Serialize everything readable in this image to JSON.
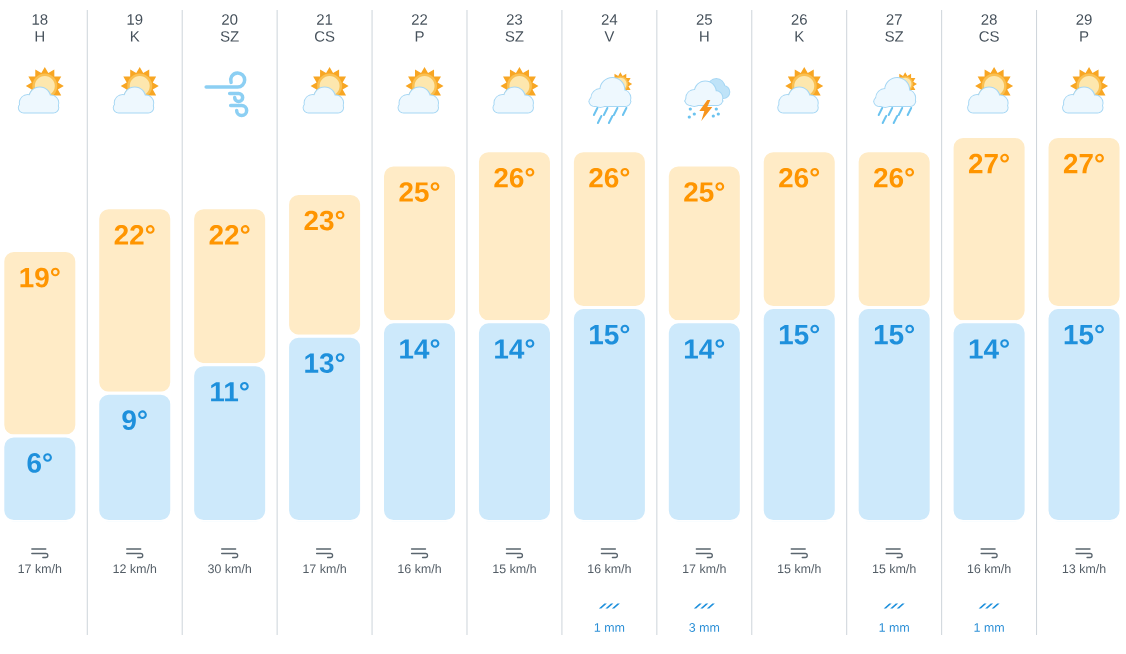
{
  "chart_data": {
    "type": "bar",
    "stacked": true,
    "categories": [
      "18 H",
      "19 K",
      "20 SZ",
      "21 CS",
      "22 P",
      "23 SZ",
      "24 V",
      "25 H",
      "26 K",
      "27 SZ",
      "28 CS",
      "29 P"
    ],
    "series": [
      {
        "color": "#cde9fb",
        "values": [
          6,
          9,
          11,
          13,
          14,
          14,
          15,
          14,
          15,
          15,
          14,
          15
        ],
        "value_labels": [
          "6°",
          "9°",
          "11°",
          "13°",
          "14°",
          "14°",
          "15°",
          "14°",
          "15°",
          "15°",
          "14°",
          "15°"
        ]
      },
      {
        "color": "#ffebc6",
        "values": [
          13,
          13,
          11,
          10,
          11,
          12,
          11,
          11,
          11,
          11,
          13,
          12
        ]
      }
    ],
    "totals": [
      "19°",
      "22°",
      "22°",
      "23°",
      "25°",
      "26°",
      "26°",
      "25°",
      "26°",
      "26°",
      "27°",
      "27°"
    ],
    "grid": "x",
    "tick_labels": "x",
    "annotations": [
      "17 km/h",
      "12 km/h",
      "30 km/h",
      "17 km/h",
      "16 km/h",
      "15 km/h",
      "16 km/h",
      "17 km/h",
      "15 km/h",
      "15 km/h",
      "16 km/h",
      "13 km/h",
      "1 mm",
      "3 mm",
      "1 mm",
      "1 mm"
    ]
  }
}
